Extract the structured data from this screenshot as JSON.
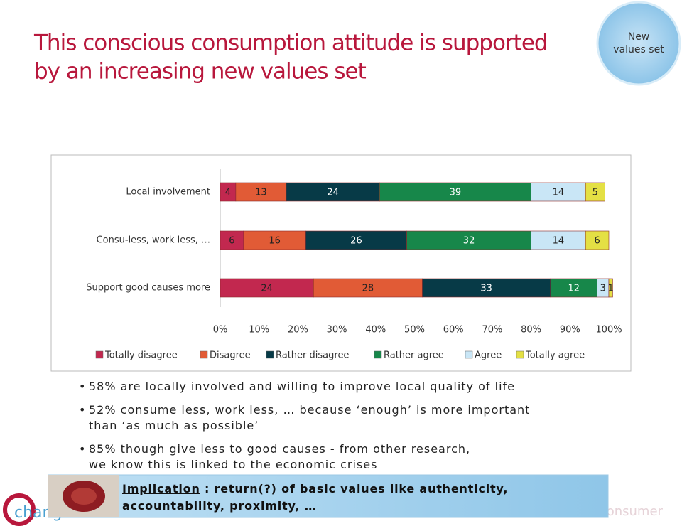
{
  "title": "This conscious consumption attitude is supported by an increasing new values set",
  "badge": "New values set",
  "chart_data": {
    "type": "stacked-bar-horizontal",
    "categories": [
      "Local involvement",
      "Consu-less, work less, …",
      "Support good causes more"
    ],
    "series": [
      {
        "name": "Totally disagree",
        "color": "#c2284f",
        "values": [
          4,
          6,
          24
        ]
      },
      {
        "name": "Disagree",
        "color": "#e15b36",
        "values": [
          13,
          16,
          28
        ]
      },
      {
        "name": "Rather disagree",
        "color": "#073a47",
        "values": [
          24,
          26,
          33
        ]
      },
      {
        "name": "Rather agree",
        "color": "#17874a",
        "values": [
          39,
          32,
          12
        ]
      },
      {
        "name": "Agree",
        "color": "#c9e6f6",
        "values": [
          14,
          14,
          3
        ]
      },
      {
        "name": "Totally agree",
        "color": "#e4e044",
        "values": [
          5,
          6,
          1
        ]
      }
    ],
    "xlim": [
      0,
      100
    ],
    "xticks": [
      {
        "value": 0,
        "label": "0%"
      },
      {
        "value": 10,
        "label": "10%"
      },
      {
        "value": 20,
        "label": "20%"
      },
      {
        "value": 30,
        "label": "30%"
      },
      {
        "value": 40,
        "label": "40%"
      },
      {
        "value": 50,
        "label": "50%"
      },
      {
        "value": 60,
        "label": "60%"
      },
      {
        "value": 70,
        "label": "70%"
      },
      {
        "value": 80,
        "label": "80%"
      },
      {
        "value": 90,
        "label": "90%"
      },
      {
        "value": 100,
        "label": "100%"
      }
    ],
    "legend": "bottom"
  },
  "bullets": [
    [
      "58% are locally involved and willing to improve local quality of life"
    ],
    [
      "52% consume less, work less, … because ‘enough’ is more important",
      "than ‘as much as possible’"
    ],
    [
      "85% though give less to good causes - from other research,",
      "we know this is linked to the economic crises"
    ]
  ],
  "implication": {
    "label": "Implication",
    "text": " : return(?) of basic values like authenticity, accountability, proximity, …"
  },
  "footer": "Branding for the new consumer",
  "logo": "change"
}
